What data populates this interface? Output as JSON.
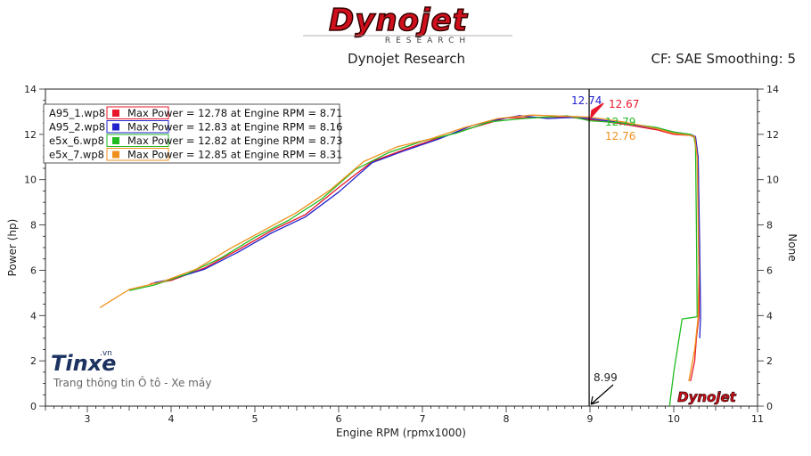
{
  "header": {
    "logo_text": "Dynojet",
    "logo_sub": "RESEARCH",
    "title": "Dynojet Research",
    "settings": "CF: SAE Smoothing: 5"
  },
  "watermark": {
    "brand": "Tinxe",
    "brand_suffix": ".vn",
    "tagline": "Trang thông tin Ô tô - Xe máy"
  },
  "corner_logo_text": "Dynojet",
  "cursor_label": "8.99",
  "colors": {
    "A95_1": "#e8182a",
    "A95_2": "#2222cc",
    "e5x_6": "#22bb22",
    "e5x_7": "#f0901c",
    "logo_red": "#d0101c"
  },
  "chart_data": {
    "type": "line",
    "xlabel": "Engine RPM (rpmx1000)",
    "ylabel": "Power (hp)",
    "y2label": "None",
    "xlim": [
      2.5,
      11
    ],
    "ylim": [
      0,
      14
    ],
    "xticks": [
      3,
      4,
      5,
      6,
      7,
      8,
      9,
      10,
      11
    ],
    "yticks": [
      0,
      2,
      4,
      6,
      8,
      10,
      12,
      14
    ],
    "grid": false,
    "cursor_x": 8.99,
    "legend_position": "top-left",
    "series": [
      {
        "name": "A95_1.wp8",
        "color": "#e8182a",
        "legend": "Max Power = 12.78 at Engine RPM = 8.71",
        "peak_label": "12.67",
        "x": [
          3.75,
          4.0,
          4.4,
          4.8,
          5.2,
          5.6,
          6.0,
          6.4,
          6.8,
          7.2,
          7.6,
          8.0,
          8.4,
          8.71,
          9.0,
          9.4,
          9.8,
          10.0,
          10.2,
          10.26,
          10.29,
          10.31,
          10.3,
          10.27,
          10.25,
          10.2
        ],
        "y": [
          5.4,
          5.55,
          6.1,
          6.9,
          7.75,
          8.45,
          9.65,
          10.8,
          11.35,
          11.85,
          12.3,
          12.72,
          12.75,
          12.78,
          12.65,
          12.45,
          12.2,
          12.0,
          11.95,
          11.85,
          11.0,
          6.0,
          3.95,
          3.0,
          2.0,
          1.1
        ]
      },
      {
        "name": "A95_2.wp8",
        "color": "#2222cc",
        "legend": "Max Power = 12.83 at Engine RPM = 8.16",
        "peak_label": "12.74",
        "x": [
          3.8,
          4.0,
          4.4,
          4.8,
          5.2,
          5.6,
          6.0,
          6.4,
          6.8,
          7.2,
          7.6,
          7.9,
          8.16,
          8.5,
          8.8,
          9.0,
          9.4,
          9.8,
          10.0,
          10.2,
          10.26,
          10.29,
          10.31,
          10.32,
          10.31
        ],
        "y": [
          5.45,
          5.6,
          6.05,
          6.8,
          7.65,
          8.35,
          9.45,
          10.75,
          11.3,
          11.8,
          12.4,
          12.65,
          12.83,
          12.7,
          12.75,
          12.7,
          12.5,
          12.25,
          12.1,
          12.0,
          11.9,
          11.0,
          7.0,
          4.0,
          3.0
        ]
      },
      {
        "name": "e5x_6.wp8",
        "color": "#22bb22",
        "legend": "Max Power = 12.82 at Engine RPM = 8.73",
        "peak_label": "12.79",
        "x": [
          3.5,
          3.8,
          4.2,
          4.6,
          5.0,
          5.4,
          5.8,
          6.2,
          6.6,
          7.0,
          7.4,
          7.8,
          8.2,
          8.73,
          9.0,
          9.4,
          9.8,
          10.0,
          10.2,
          10.24,
          10.26,
          10.27,
          10.28,
          10.2,
          10.1,
          10.0,
          9.95
        ],
        "y": [
          5.1,
          5.35,
          5.85,
          6.55,
          7.45,
          8.2,
          9.15,
          10.45,
          11.2,
          11.7,
          12.05,
          12.55,
          12.7,
          12.82,
          12.6,
          12.5,
          12.3,
          12.1,
          12.0,
          11.9,
          11.5,
          8.0,
          3.95,
          3.9,
          3.85,
          1.5,
          0.0
        ]
      },
      {
        "name": "e5x_7.wp8",
        "color": "#f0901c",
        "legend": "Max Power = 12.85 at Engine RPM = 8.31",
        "peak_label": "12.76",
        "x": [
          3.15,
          3.5,
          3.9,
          4.3,
          4.7,
          5.1,
          5.5,
          5.9,
          6.3,
          6.7,
          7.1,
          7.5,
          7.9,
          8.31,
          8.7,
          9.0,
          9.4,
          9.8,
          10.0,
          10.2,
          10.25,
          10.28,
          10.3,
          10.29,
          10.25,
          10.2,
          10.18
        ],
        "y": [
          4.35,
          5.15,
          5.5,
          6.05,
          6.95,
          7.75,
          8.55,
          9.55,
          10.8,
          11.45,
          11.8,
          12.3,
          12.7,
          12.85,
          12.8,
          12.76,
          12.55,
          12.25,
          12.05,
          11.95,
          11.9,
          11.0,
          6.0,
          3.9,
          2.5,
          1.5,
          1.1
        ]
      }
    ]
  }
}
